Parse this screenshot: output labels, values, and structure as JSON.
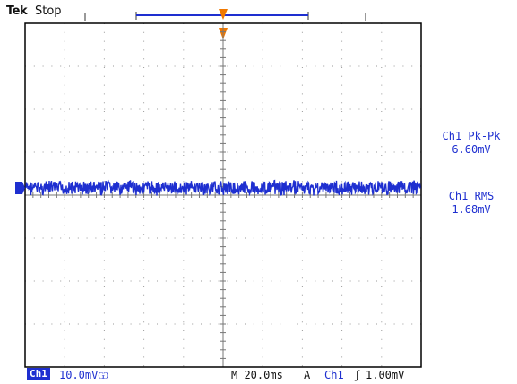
{
  "header": {
    "brand": "Tek",
    "run_state": "Stop"
  },
  "markers": {
    "trigger_position": "T",
    "channel_ground": "1"
  },
  "measurements": [
    {
      "label": "Ch1 Pk-Pk",
      "value": "6.60mV"
    },
    {
      "label": "Ch1 RMS",
      "value": "1.68mV"
    }
  ],
  "status_bar": {
    "channel": "Ch1",
    "volts_per_div": "10.0mV",
    "bandwidth_icon": "bw-limit-icon",
    "timebase": "M 20.0ms",
    "trigger_mode": "A",
    "trigger_source": "Ch1",
    "trigger_slope": "rising-edge-icon",
    "trigger_level": "1.00mV"
  },
  "colors": {
    "trace": "#1e2fd0",
    "trigger_marker": "#f07800",
    "graticule": "#9a9a9a",
    "frame": "#000000"
  },
  "graticule": {
    "h_divisions": 10,
    "v_divisions": 8
  }
}
